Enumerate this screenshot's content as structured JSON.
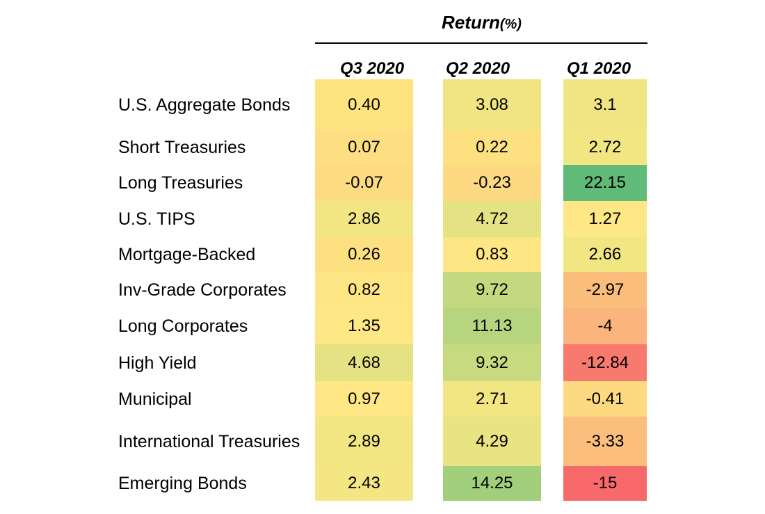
{
  "chart_data": {
    "type": "table",
    "title": "Return",
    "title_unit": "(%)",
    "columns": [
      "Q3 2020",
      "Q2 2020",
      "Q1 2020"
    ],
    "rows": [
      {
        "label": "U.S. Aggregate Bonds",
        "values": [
          "0.40",
          "3.08",
          "3.1"
        ],
        "colors": [
          "#fde47f",
          "#f0e582",
          "#f0e582"
        ]
      },
      {
        "label": "Short Treasuries",
        "values": [
          "0.07",
          "0.22",
          "2.72"
        ],
        "colors": [
          "#fdde82",
          "#fde181",
          "#f2e683"
        ]
      },
      {
        "label": "Long Treasuries",
        "values": [
          "-0.07",
          "-0.23",
          "22.15"
        ],
        "colors": [
          "#fddc81",
          "#fdd981",
          "#5fbb77"
        ]
      },
      {
        "label": "U.S. TIPS",
        "values": [
          "2.86",
          "4.72",
          "1.27"
        ],
        "colors": [
          "#f2e683",
          "#e5e283",
          "#fde885"
        ]
      },
      {
        "label": "Mortgage-Backed",
        "values": [
          "0.26",
          "0.83",
          "2.66"
        ],
        "colors": [
          "#fde181",
          "#fee684",
          "#f2e683"
        ]
      },
      {
        "label": "Inv-Grade Corporates",
        "values": [
          "0.82",
          "9.72",
          "-2.97"
        ],
        "colors": [
          "#fee684",
          "#c4d97f",
          "#fbbd7c"
        ]
      },
      {
        "label": "Long Corporates",
        "values": [
          "1.35",
          "11.13",
          "-4"
        ],
        "colors": [
          "#fde885",
          "#b7d57e",
          "#fbb47b"
        ]
      },
      {
        "label": "High Yield",
        "values": [
          "4.68",
          "9.32",
          "-12.84"
        ],
        "colors": [
          "#e5e283",
          "#c7da7f",
          "#f8796e"
        ]
      },
      {
        "label": "Municipal",
        "values": [
          "0.97",
          "2.71",
          "-0.41"
        ],
        "colors": [
          "#fee784",
          "#f2e683",
          "#fdd981"
        ]
      },
      {
        "label": "International Treasuries",
        "values": [
          "2.89",
          "4.29",
          "-3.33"
        ],
        "colors": [
          "#f2e683",
          "#e8e383",
          "#fbbe7c"
        ]
      },
      {
        "label": "Emerging Bonds",
        "values": [
          "2.43",
          "14.25",
          "-15"
        ],
        "colors": [
          "#f4e683",
          "#a1cf7b",
          "#f8696b"
        ]
      }
    ]
  }
}
